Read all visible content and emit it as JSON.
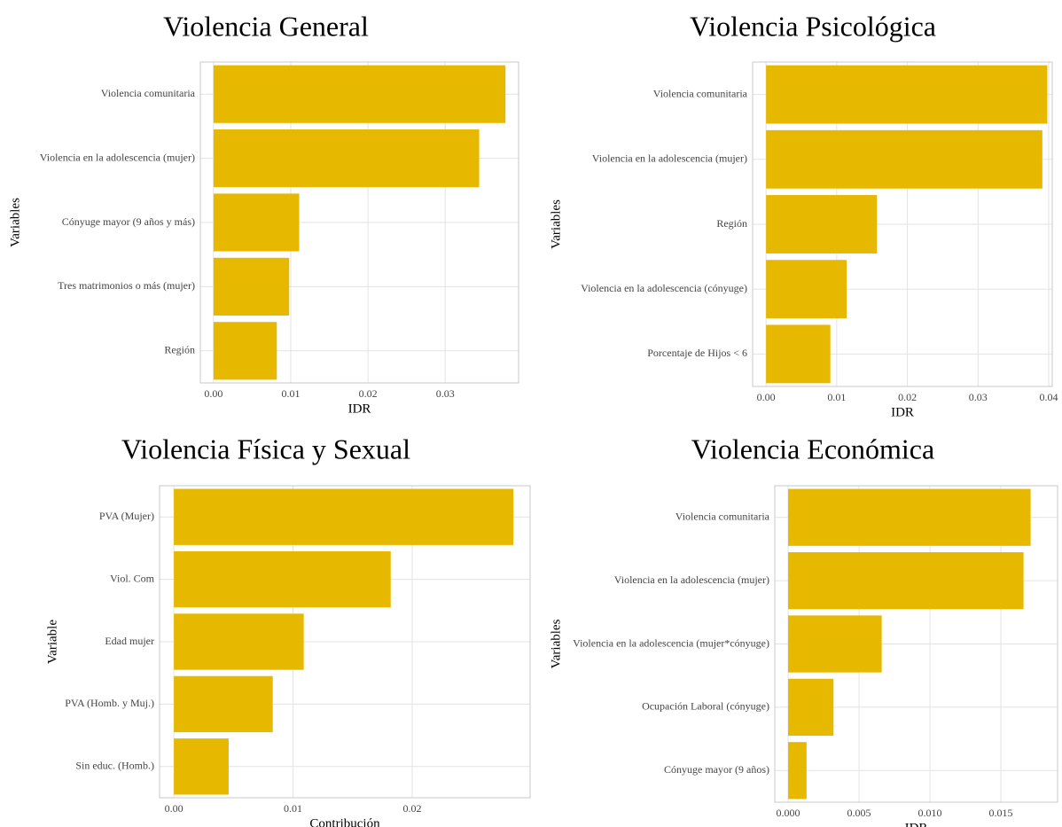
{
  "chart_data": [
    {
      "type": "bar",
      "orientation": "horizontal",
      "title": "Violencia General",
      "xlabel": "IDR",
      "ylabel": "Variables",
      "color": "#e6b800",
      "grid": true,
      "categories": [
        "Violencia comunitaria",
        "Violencia en la adolescencia (mujer)",
        "Cónyuge mayor (9 años y más)",
        "Tres matrimonios o más (mujer)",
        "Región"
      ],
      "values": [
        0.0378,
        0.0344,
        0.0111,
        0.0098,
        0.0082
      ],
      "xlim": [
        -0.0017,
        0.0395
      ],
      "xticks": [
        {
          "value": 0,
          "label": "0.00"
        },
        0.01,
        0.02,
        0.03
      ]
    },
    {
      "type": "bar",
      "orientation": "horizontal",
      "title": "Violencia Psicológica",
      "xlabel": "IDR",
      "ylabel": "Variables",
      "color": "#e6b800",
      "grid": true,
      "categories": [
        "Violencia comunitaria",
        "Violencia en la adolescencia (mujer)",
        "Región",
        "Violencia en la adolescencia (cónyuge)",
        "Porcentaje de Hijos < 6"
      ],
      "values": [
        0.0398,
        0.0391,
        0.0157,
        0.0114,
        0.0091
      ],
      "xlim": [
        -0.0019,
        0.0405
      ],
      "xticks": [
        {
          "value": 0,
          "label": "0.00"
        },
        0.01,
        0.02,
        0.03,
        0.04
      ]
    },
    {
      "type": "bar",
      "orientation": "horizontal",
      "title": "Violencia Física y Sexual",
      "xlabel": "Contribución",
      "ylabel": "Variable",
      "color": "#e6b800",
      "grid": true,
      "categories": [
        "PVA (Mujer)",
        "Viol. Com",
        "Edad mujer",
        "PVA (Homb. y Muj.)",
        "Sin educ. (Homb.)"
      ],
      "values": [
        0.0285,
        0.0182,
        0.0109,
        0.0083,
        0.0046
      ],
      "xlim": [
        -0.0012,
        0.0299
      ],
      "xticks": [
        {
          "value": 0,
          "label": "0.00"
        },
        0.01,
        0.02
      ]
    },
    {
      "type": "bar",
      "orientation": "horizontal",
      "title": "Violencia Económica",
      "xlabel": "IDR",
      "ylabel": "Variables",
      "color": "#e6b800",
      "grid": true,
      "categories": [
        "Violencia comunitaria",
        "Violencia en la adolescencia (mujer)",
        "Violencia en la adolescencia (mujer*cónyuge)",
        "Ocupación Laboral (cónyuge)",
        "Cónyuge mayor (9 años)"
      ],
      "values": [
        0.0171,
        0.0166,
        0.0066,
        0.0032,
        0.0013
      ],
      "xlim": [
        -0.00094,
        0.019
      ],
      "xticks": [
        {
          "value": 0,
          "label": "0.000"
        },
        0.005,
        {
          "value": 0.01,
          "label": "0.010"
        },
        0.015
      ]
    }
  ]
}
